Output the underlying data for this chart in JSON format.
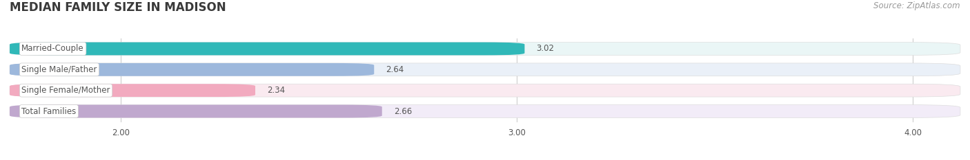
{
  "title": "MEDIAN FAMILY SIZE IN MADISON",
  "source": "Source: ZipAtlas.com",
  "categories": [
    "Married-Couple",
    "Single Male/Father",
    "Single Female/Mother",
    "Total Families"
  ],
  "values": [
    3.02,
    2.64,
    2.34,
    2.66
  ],
  "bar_colors": [
    "#30b8b8",
    "#9db8dc",
    "#f2aabf",
    "#c0a8ce"
  ],
  "bg_colors": [
    "#eaf6f6",
    "#eaf0f8",
    "#faeaf0",
    "#f2ecf8"
  ],
  "xmin": 1.72,
  "xlim": [
    1.72,
    4.12
  ],
  "xticks": [
    2.0,
    3.0,
    4.0
  ],
  "bar_height": 0.62,
  "bar_gap": 0.15,
  "background_color": "#ffffff",
  "title_color": "#3a3a3a",
  "label_color": "#555555",
  "value_color": "#555555",
  "source_color": "#999999",
  "title_fontsize": 12,
  "label_fontsize": 8.5,
  "value_fontsize": 8.5,
  "source_fontsize": 8.5,
  "grid_color": "#cccccc"
}
